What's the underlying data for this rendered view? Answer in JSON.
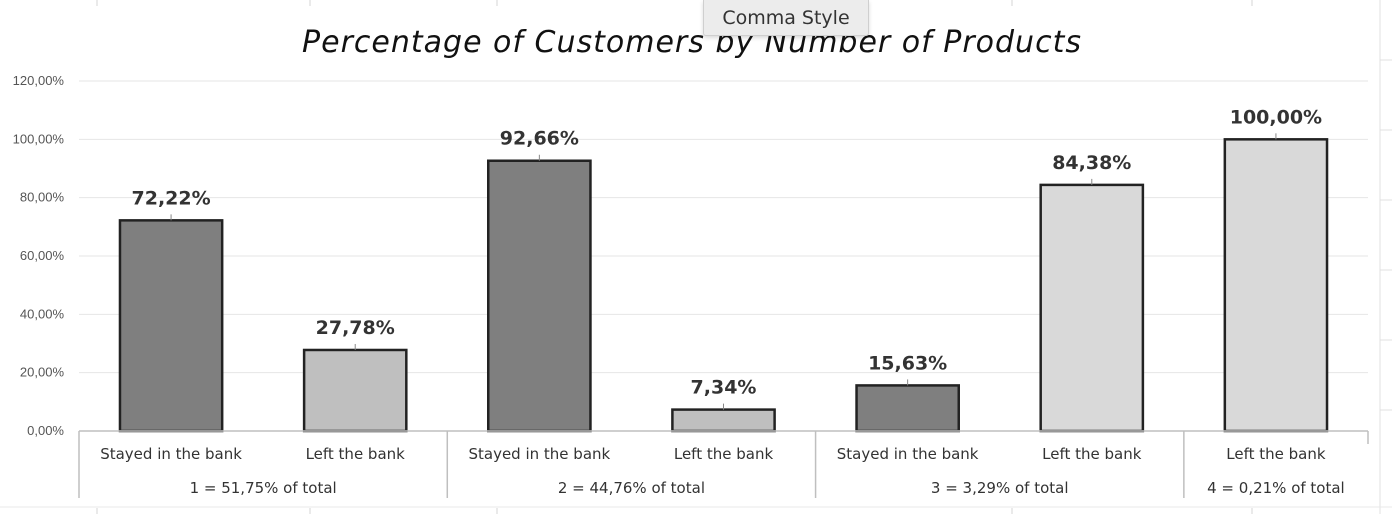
{
  "tooltip": {
    "label": "Comma Style"
  },
  "chart_data": {
    "type": "bar",
    "title": "Percentage of Customers by Number of Products",
    "xlabel": "",
    "ylabel": "",
    "ylim": [
      0,
      120
    ],
    "yticks": [
      {
        "value": 0,
        "label": "0,00%"
      },
      {
        "value": 20,
        "label": "20,00%"
      },
      {
        "value": 40,
        "label": "40,00%"
      },
      {
        "value": 60,
        "label": "60,00%"
      },
      {
        "value": 80,
        "label": "80,00%"
      },
      {
        "value": 100,
        "label": "100,00%"
      },
      {
        "value": 120,
        "label": "120,00%"
      }
    ],
    "grid": true,
    "legend": "none",
    "groups": [
      {
        "label": "1 = 51,75% of total",
        "bars": [
          {
            "category": "Stayed in the bank",
            "value": 72.22,
            "label": "72,22%",
            "color": "#7f7f7f"
          },
          {
            "category": "Left the bank",
            "value": 27.78,
            "label": "27,78%",
            "color": "#bfbfbf"
          }
        ]
      },
      {
        "label": "2 = 44,76% of total",
        "bars": [
          {
            "category": "Stayed in the bank",
            "value": 92.66,
            "label": "92,66%",
            "color": "#7f7f7f"
          },
          {
            "category": "Left the bank",
            "value": 7.34,
            "label": "7,34%",
            "color": "#bfbfbf"
          }
        ]
      },
      {
        "label": "3 = 3,29% of total",
        "bars": [
          {
            "category": "Stayed in the bank",
            "value": 15.63,
            "label": "15,63%",
            "color": "#7f7f7f"
          },
          {
            "category": "Left the bank",
            "value": 84.38,
            "label": "84,38%",
            "color": "#d9d9d9"
          }
        ]
      },
      {
        "label": "4 = 0,21% of total",
        "bars": [
          {
            "category": "Left the bank",
            "value": 100.0,
            "label": "100,00%",
            "color": "#d9d9d9"
          }
        ]
      }
    ]
  }
}
